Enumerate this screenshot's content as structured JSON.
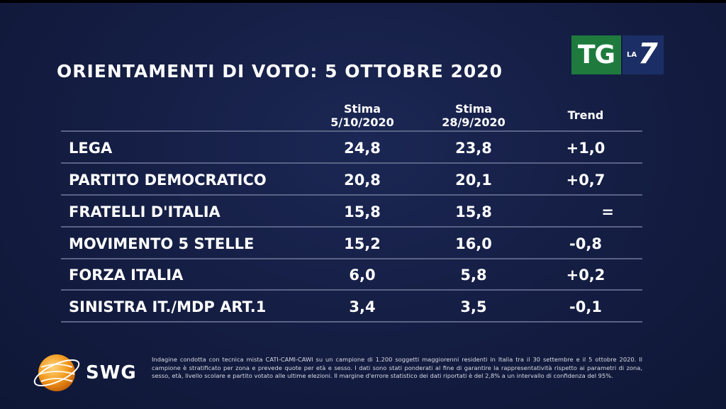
{
  "title": "ORIENTAMENTI DI VOTO: 5 OTTOBRE 2020",
  "broadcaster_logo": {
    "tg": "TG",
    "la": "LA",
    "seven": "7",
    "colors": {
      "tg_bg": "#1e7b3d",
      "la7_bg": "#1b2f66"
    }
  },
  "table": {
    "columns": [
      {
        "line1": "Stima",
        "line2": "5/10/2020"
      },
      {
        "line1": "Stima",
        "line2": "28/9/2020"
      },
      {
        "line1": "Trend",
        "line2": ""
      }
    ],
    "rows": [
      {
        "party": "LEGA",
        "current": "24,8",
        "previous": "23,8",
        "trend": "+1,0"
      },
      {
        "party": "PARTITO DEMOCRATICO",
        "current": "20,8",
        "previous": "20,1",
        "trend": "+0,7"
      },
      {
        "party": "FRATELLI D'ITALIA",
        "current": "15,8",
        "previous": "15,8",
        "trend": "="
      },
      {
        "party": "MOVIMENTO 5 STELLE",
        "current": "15,2",
        "previous": "16,0",
        "trend": "-0,8"
      },
      {
        "party": "FORZA ITALIA",
        "current": "6,0",
        "previous": "5,8",
        "trend": "+0,2"
      },
      {
        "party": "SINISTRA IT./MDP ART.1",
        "current": "3,4",
        "previous": "3,5",
        "trend": "-0,1"
      }
    ]
  },
  "pollster": {
    "name": "SWG",
    "icon": "globe-icon",
    "color": "#f39a1e"
  },
  "footnote": "Indagine condotta con tecnica mista CATI-CAMI-CAWI su un campione di 1.200 soggetti maggiorenni residenti in Italia tra il 30 settembre e il 5 ottobre 2020. Il campione è stratificato per zona e prevede quote per età e sesso. I dati sono stati ponderati al fine di garantire la rappresentatività rispetto ai parametri di zona, sesso, età, livello scolare e partito votato alle ultime elezioni. Il margine d'errore statistico dei dati riportati è del 2,8% a un intervallo di confidenza del 95%."
}
